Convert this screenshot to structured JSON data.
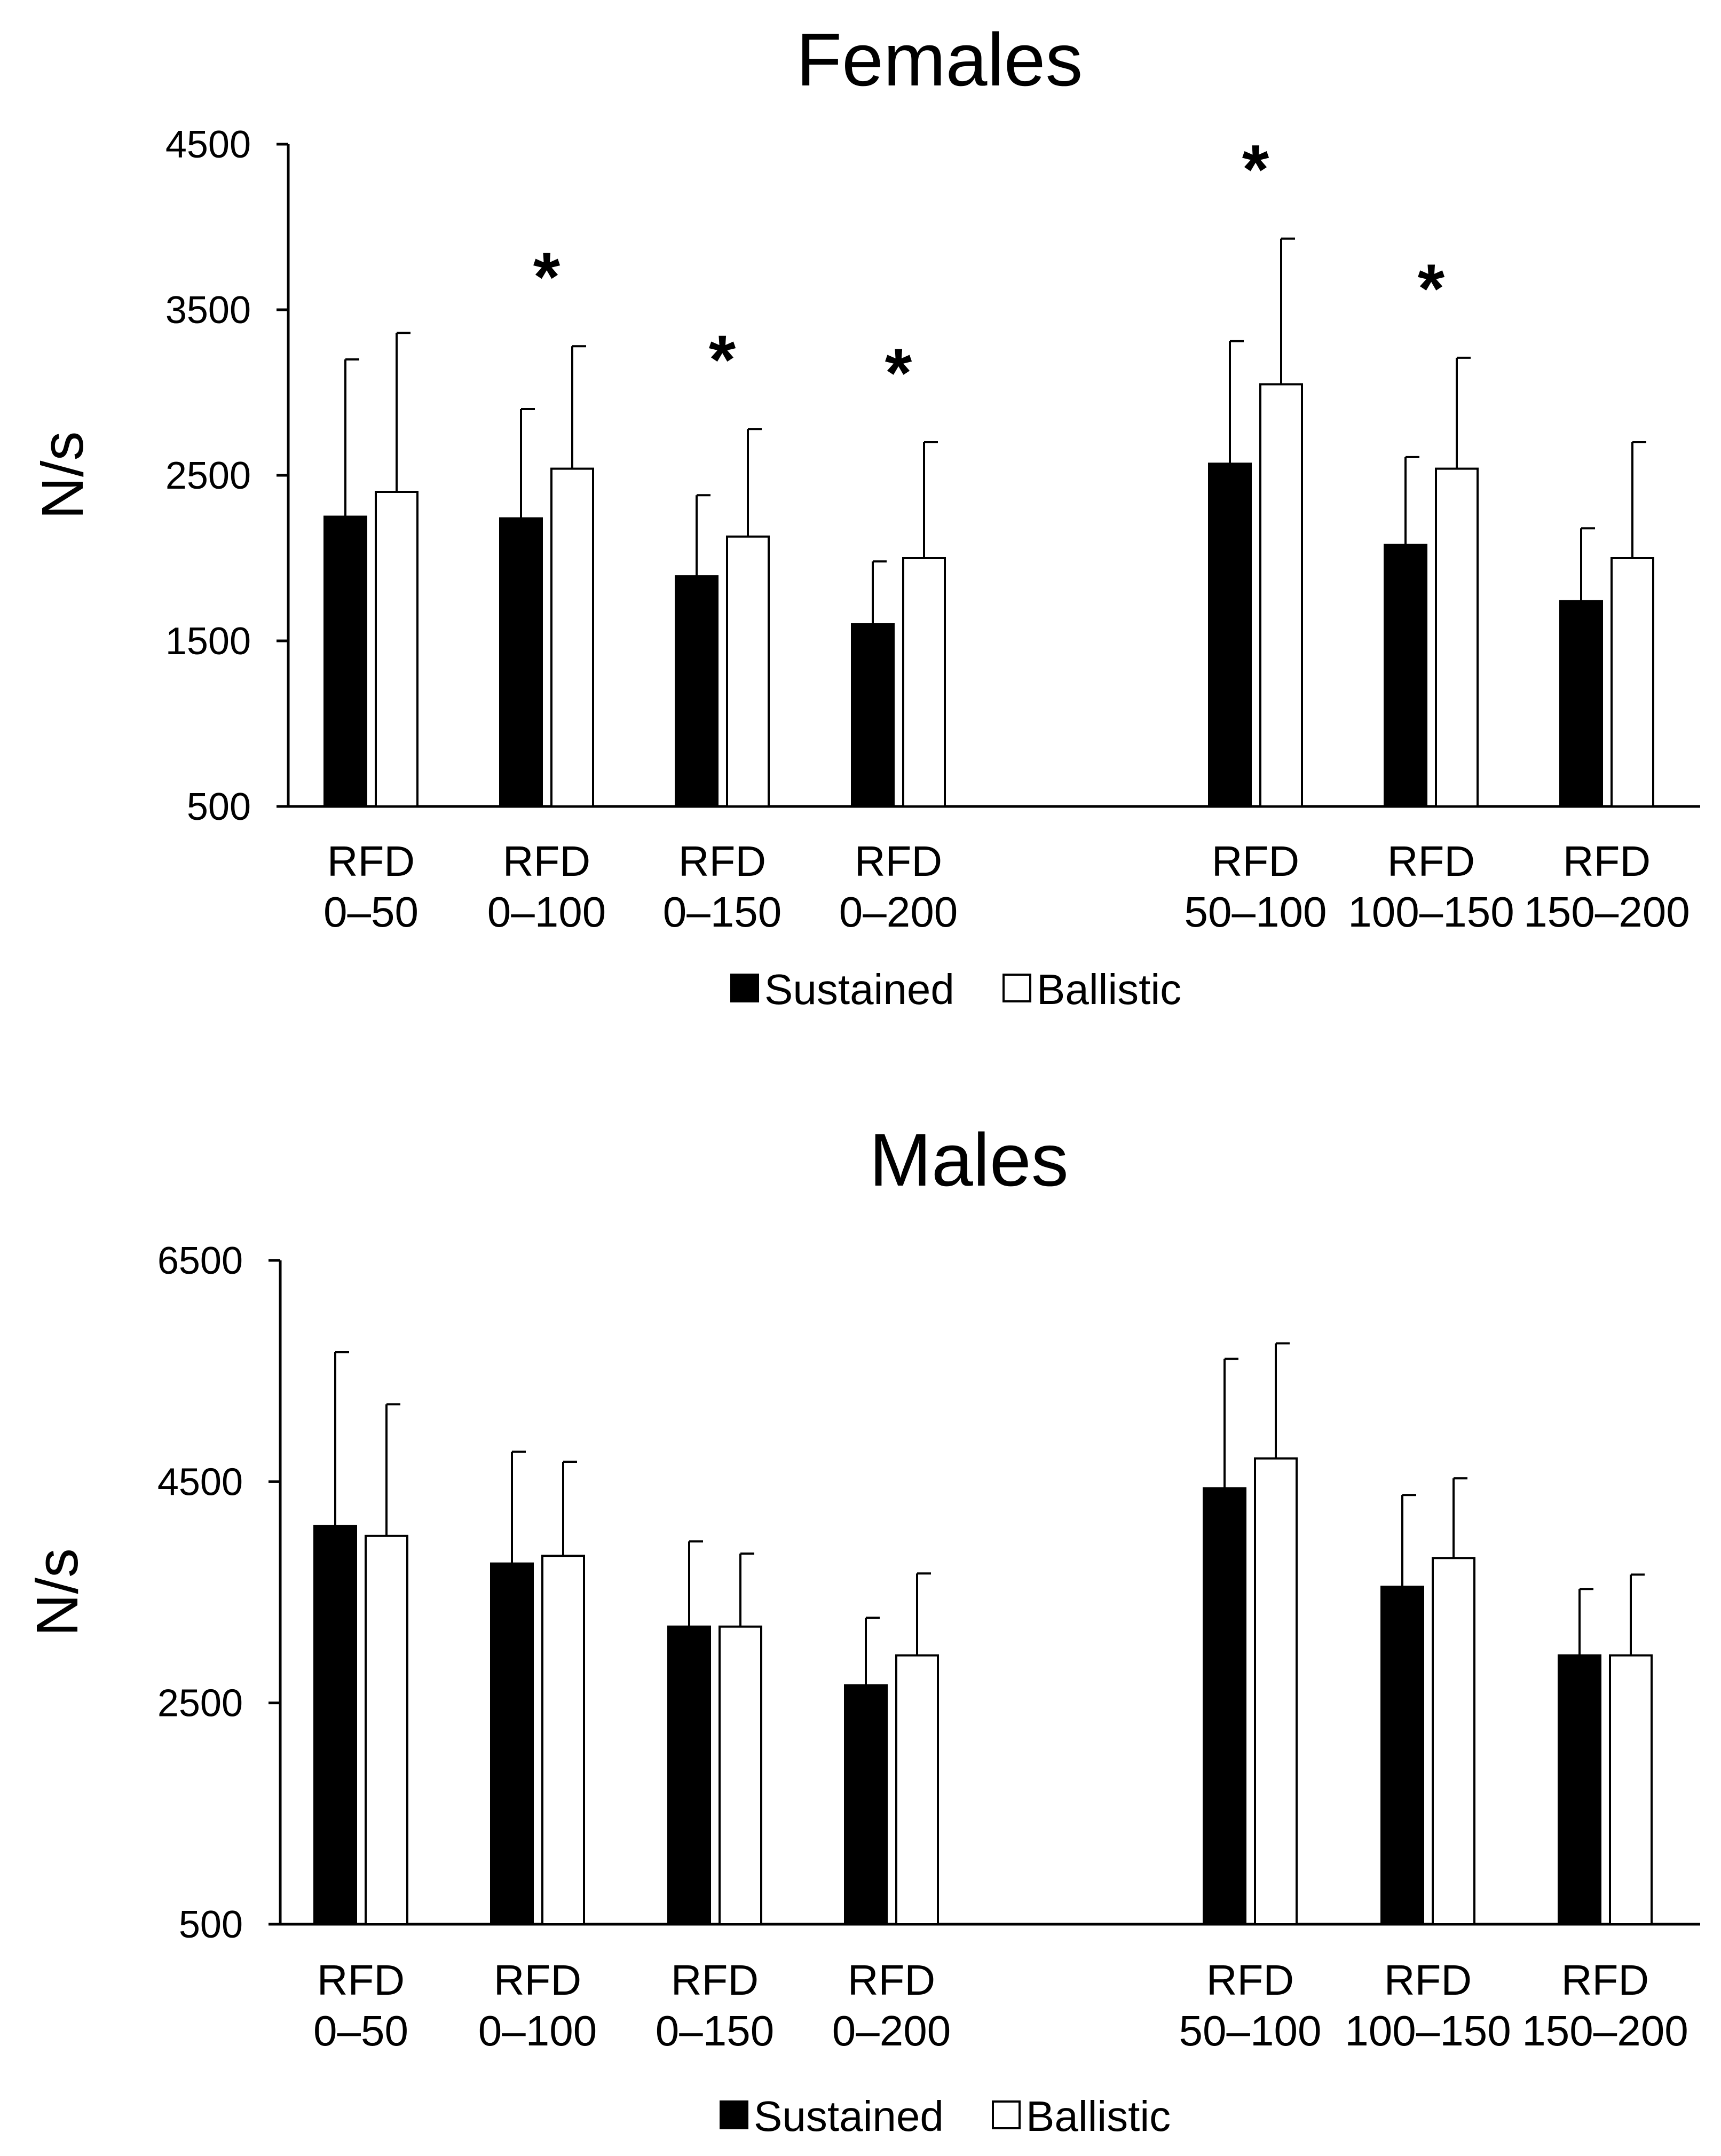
{
  "chart_data": [
    {
      "type": "bar",
      "title": "Females",
      "ylabel": "N/s",
      "xlabel": "",
      "ylim": [
        500,
        4500
      ],
      "yticks": [
        500,
        1500,
        2500,
        3500,
        4500
      ],
      "grid": false,
      "legend_position": "bottom-center",
      "categories": [
        [
          "RFD",
          "0–50"
        ],
        [
          "RFD",
          "0–100"
        ],
        [
          "RFD",
          "0–150"
        ],
        [
          "RFD",
          "0–200"
        ],
        [
          "RFD",
          "50–100"
        ],
        [
          "RFD",
          "100–150"
        ],
        [
          "RFD",
          "150–200"
        ]
      ],
      "series": [
        {
          "name": "Sustained",
          "color": "#000000",
          "values": [
            2250,
            2240,
            1890,
            1600,
            2570,
            2080,
            1740
          ],
          "errors": [
            950,
            660,
            490,
            380,
            740,
            530,
            440
          ]
        },
        {
          "name": "Ballistic",
          "color": "#ffffff",
          "values": [
            2400,
            2540,
            2130,
            2000,
            3050,
            2540,
            2000
          ],
          "errors": [
            960,
            740,
            650,
            700,
            880,
            670,
            700
          ]
        }
      ],
      "significance": [
        "",
        "*",
        "*",
        "*",
        "*",
        "*",
        ""
      ],
      "legend": [
        "Sustained",
        "Ballistic"
      ]
    },
    {
      "type": "bar",
      "title": "Males",
      "ylabel": "N/s",
      "xlabel": "",
      "ylim": [
        500,
        6500
      ],
      "yticks": [
        500,
        2500,
        4500,
        6500
      ],
      "grid": false,
      "legend_position": "bottom-center",
      "categories": [
        [
          "RFD",
          "0–50"
        ],
        [
          "RFD",
          "0–100"
        ],
        [
          "RFD",
          "0–150"
        ],
        [
          "RFD",
          "0–200"
        ],
        [
          "RFD",
          "50–100"
        ],
        [
          "RFD",
          "100–150"
        ],
        [
          "RFD",
          "150–200"
        ]
      ],
      "series": [
        {
          "name": "Sustained",
          "color": "#000000",
          "values": [
            4100,
            3760,
            3190,
            2660,
            4440,
            3550,
            2930
          ],
          "errors": [
            1570,
            1010,
            770,
            610,
            1170,
            830,
            600
          ]
        },
        {
          "name": "Ballistic",
          "color": "#ffffff",
          "values": [
            4010,
            3830,
            3190,
            2930,
            4710,
            3810,
            2930
          ],
          "errors": [
            1190,
            850,
            660,
            740,
            1040,
            720,
            730
          ]
        }
      ],
      "significance": [
        "",
        "",
        "",
        "",
        "",
        "",
        ""
      ],
      "legend": [
        "Sustained",
        "Ballistic"
      ]
    }
  ]
}
